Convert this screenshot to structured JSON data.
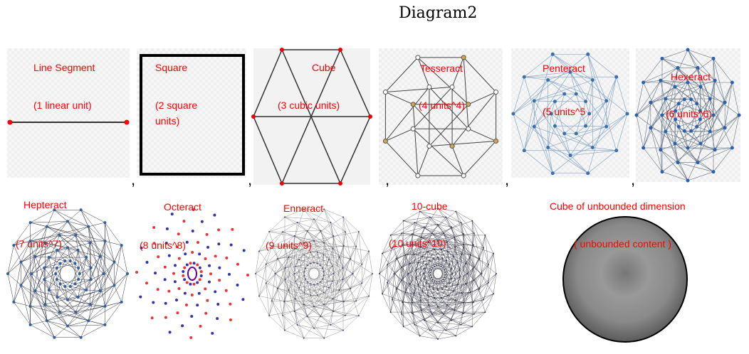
{
  "title": "Diagram2",
  "panels": [
    {
      "name": "Line Segment",
      "content": "(1 linear unit)"
    },
    {
      "name": "Square",
      "content": "(2 square units)"
    },
    {
      "name": "Cube",
      "content": "(3 cubic units)"
    },
    {
      "name": "Tesseract",
      "content": "(4 units^4)"
    },
    {
      "name": "Penteract",
      "content": "(5 units^5"
    },
    {
      "name": "Hexeract",
      "content": "(6 units^6)"
    },
    {
      "name": "Hepteract",
      "content": "(7 units^7)"
    },
    {
      "name": "Octeract",
      "content": "(8 units^8)"
    },
    {
      "name": "Enneract",
      "content": "(9 units^9)"
    },
    {
      "name": "10-cube",
      "content": "(10 units^10)"
    },
    {
      "name": "Cube of unbounded dimension",
      "content": "( unbounded content )"
    }
  ],
  "separators": [
    ",",
    ",",
    ",",
    ",",
    ","
  ]
}
